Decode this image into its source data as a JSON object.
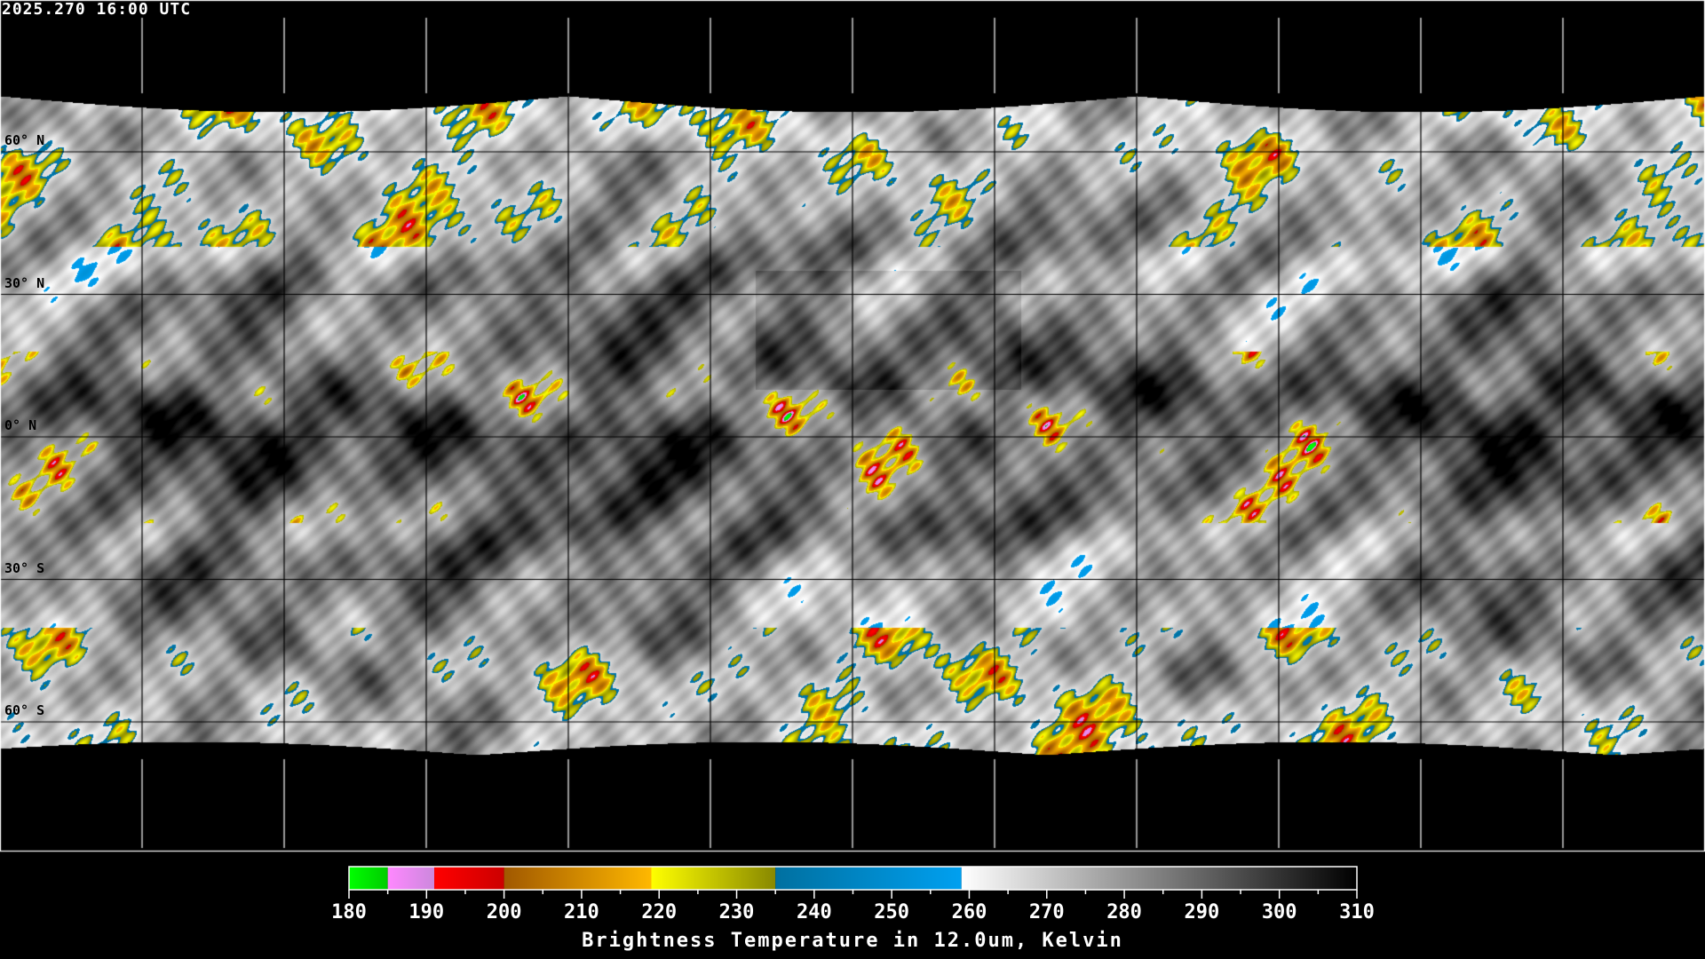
{
  "title": "2025.270 16:00 UTC",
  "map": {
    "projection": "equirectangular",
    "graticule_spacing_deg": 30,
    "lat_labels": [
      "60° N",
      "30° N",
      "0° N",
      "30° S",
      "60° S"
    ],
    "lat_values": [
      60,
      30,
      0,
      -30,
      -60
    ]
  },
  "colorbar": {
    "title": "Brightness Temperature in 12.0um, Kelvin",
    "min": 180,
    "max": 310,
    "tick_labels": [
      "180",
      "190",
      "200",
      "210",
      "220",
      "230",
      "240",
      "250",
      "260",
      "270",
      "280",
      "290",
      "300",
      "310"
    ],
    "segments": [
      {
        "from": 180,
        "to": 185,
        "c0": "#00ff00",
        "c1": "#00cc00"
      },
      {
        "from": 185,
        "to": 191,
        "c0": "#ff88ff",
        "c1": "#cc88dd"
      },
      {
        "from": 191,
        "to": 200,
        "c0": "#ff0000",
        "c1": "#cc0000"
      },
      {
        "from": 200,
        "to": 219,
        "c0": "#a05800",
        "c1": "#ffb800"
      },
      {
        "from": 219,
        "to": 235,
        "c0": "#ffff00",
        "c1": "#888800"
      },
      {
        "from": 235,
        "to": 259,
        "c0": "#0070a0",
        "c1": "#00a0f0"
      },
      {
        "from": 259,
        "to": 310,
        "c0": "#ffffff",
        "c1": "#000000"
      }
    ]
  }
}
